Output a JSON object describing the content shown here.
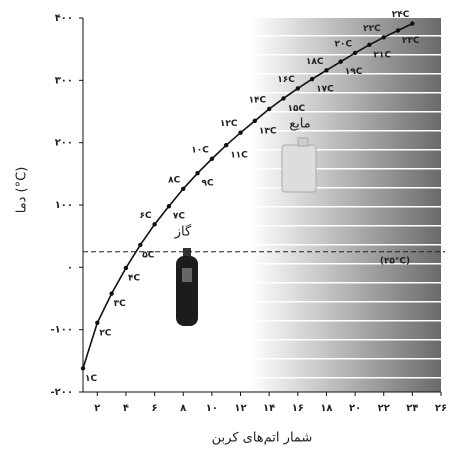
{
  "chart_data": {
    "type": "line",
    "y_label": "دما (°C)",
    "x_label": "شمار اتم‌های کربن",
    "annotations": [
      "گاز",
      "مایع"
    ],
    "reference_line": {
      "value": 25,
      "label": "(۲۵°C)"
    },
    "x": [
      1,
      2,
      3,
      4,
      5,
      6,
      7,
      8,
      9,
      10,
      11,
      12,
      13,
      14,
      15,
      16,
      17,
      18,
      19,
      20,
      21,
      22,
      23,
      24
    ],
    "values": [
      -162,
      -89,
      -42,
      -1,
      36,
      69,
      98,
      126,
      151,
      174,
      196,
      216,
      235,
      254,
      271,
      287,
      302,
      316,
      330,
      344,
      357,
      369,
      380,
      391
    ],
    "point_labels": [
      "۱C",
      "۲C",
      "۳C",
      "۴C",
      "۵C",
      "۶C",
      "۷C",
      "۸C",
      "۹C",
      "۱۰C",
      "۱۱C",
      "۱۲C",
      "۱۳C",
      "۱۴C",
      "۱۵C",
      "۱۶C",
      "۱۷C",
      "۱۸C",
      "۱۹C",
      "۲۰C",
      "۲۱C",
      "۲۲C",
      "۲۳C",
      "۲۴C"
    ],
    "color": "#111111",
    "xlim": [
      1,
      26
    ],
    "xticks": [
      {
        "value": 2,
        "label": "۲"
      },
      {
        "value": 4,
        "label": "۴"
      },
      {
        "value": 6,
        "label": "۶"
      },
      {
        "value": 8,
        "label": "۸"
      },
      {
        "value": 10,
        "label": "۱۰"
      },
      {
        "value": 12,
        "label": "۱۲"
      },
      {
        "value": 14,
        "label": "۱۴"
      },
      {
        "value": 16,
        "label": "۱۶"
      },
      {
        "value": 18,
        "label": "۱۸"
      },
      {
        "value": 20,
        "label": "۲۰"
      },
      {
        "value": 22,
        "label": "۲۲"
      },
      {
        "value": 24,
        "label": "۲۴"
      },
      {
        "value": 26,
        "label": "۲۶"
      }
    ],
    "ylim": [
      -200,
      400
    ],
    "yticks": [
      {
        "value": -200,
        "label": "-۲۰۰"
      },
      {
        "value": -100,
        "label": "-۱۰۰"
      },
      {
        "value": 0,
        "label": "۰"
      },
      {
        "value": 100,
        "label": "۱۰۰"
      },
      {
        "value": 200,
        "label": "۲۰۰"
      },
      {
        "value": 300,
        "label": "۳۰۰"
      },
      {
        "value": 400,
        "label": "۴۰۰"
      }
    ]
  }
}
